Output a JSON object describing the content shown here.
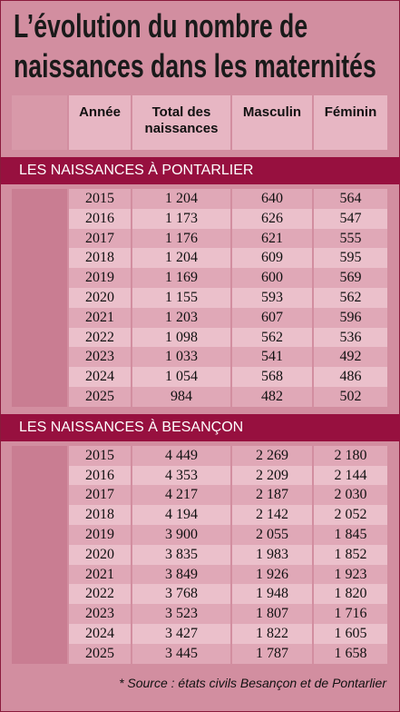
{
  "header": {
    "title": [
      "L’évolution du nombre de",
      "naissances dans les maternités"
    ]
  },
  "table": {
    "columns": [
      "Année",
      "Total des naissances",
      "Masculin",
      "Féminin"
    ],
    "sections": [
      {
        "title": "LES NAISSANCES À PONTARLIER",
        "rows": [
          [
            "2015",
            "1 204",
            "640",
            "564"
          ],
          [
            "2016",
            "1 173",
            "626",
            "547"
          ],
          [
            "2017",
            "1 176",
            "621",
            "555"
          ],
          [
            "2018",
            "1 204",
            "609",
            "595"
          ],
          [
            "2019",
            "1 169",
            "600",
            "569"
          ],
          [
            "2020",
            "1 155",
            "593",
            "562"
          ],
          [
            "2021",
            "1 203",
            "607",
            "596"
          ],
          [
            "2022",
            "1 098",
            "562",
            "536"
          ],
          [
            "2023",
            "1 033",
            "541",
            "492"
          ],
          [
            "2024",
            "1 054",
            "568",
            "486"
          ],
          [
            "2025",
            "984",
            "482",
            "502"
          ]
        ]
      },
      {
        "title": "LES NAISSANCES À BESANÇON",
        "rows": [
          [
            "2015",
            "4 449",
            "2 269",
            "2 180"
          ],
          [
            "2016",
            "4 353",
            "2 209",
            "2 144"
          ],
          [
            "2017",
            "4 217",
            "2 187",
            "2 030"
          ],
          [
            "2018",
            "4 194",
            "2 142",
            "2 052"
          ],
          [
            "2019",
            "3 900",
            "2 055",
            "1 845"
          ],
          [
            "2020",
            "3 835",
            "1 983",
            "1 852"
          ],
          [
            "2021",
            "3 849",
            "1 926",
            "1 923"
          ],
          [
            "2022",
            "3 768",
            "1 948",
            "1 820"
          ],
          [
            "2023",
            "3 523",
            "1 807",
            "1 716"
          ],
          [
            "2024",
            "3 427",
            "1 822",
            "1 605"
          ],
          [
            "2025",
            "3 445",
            "1 787",
            "1 658"
          ]
        ]
      }
    ]
  },
  "footer": {
    "source": "* Source : états civils Besançon et de Pontarlier"
  }
}
